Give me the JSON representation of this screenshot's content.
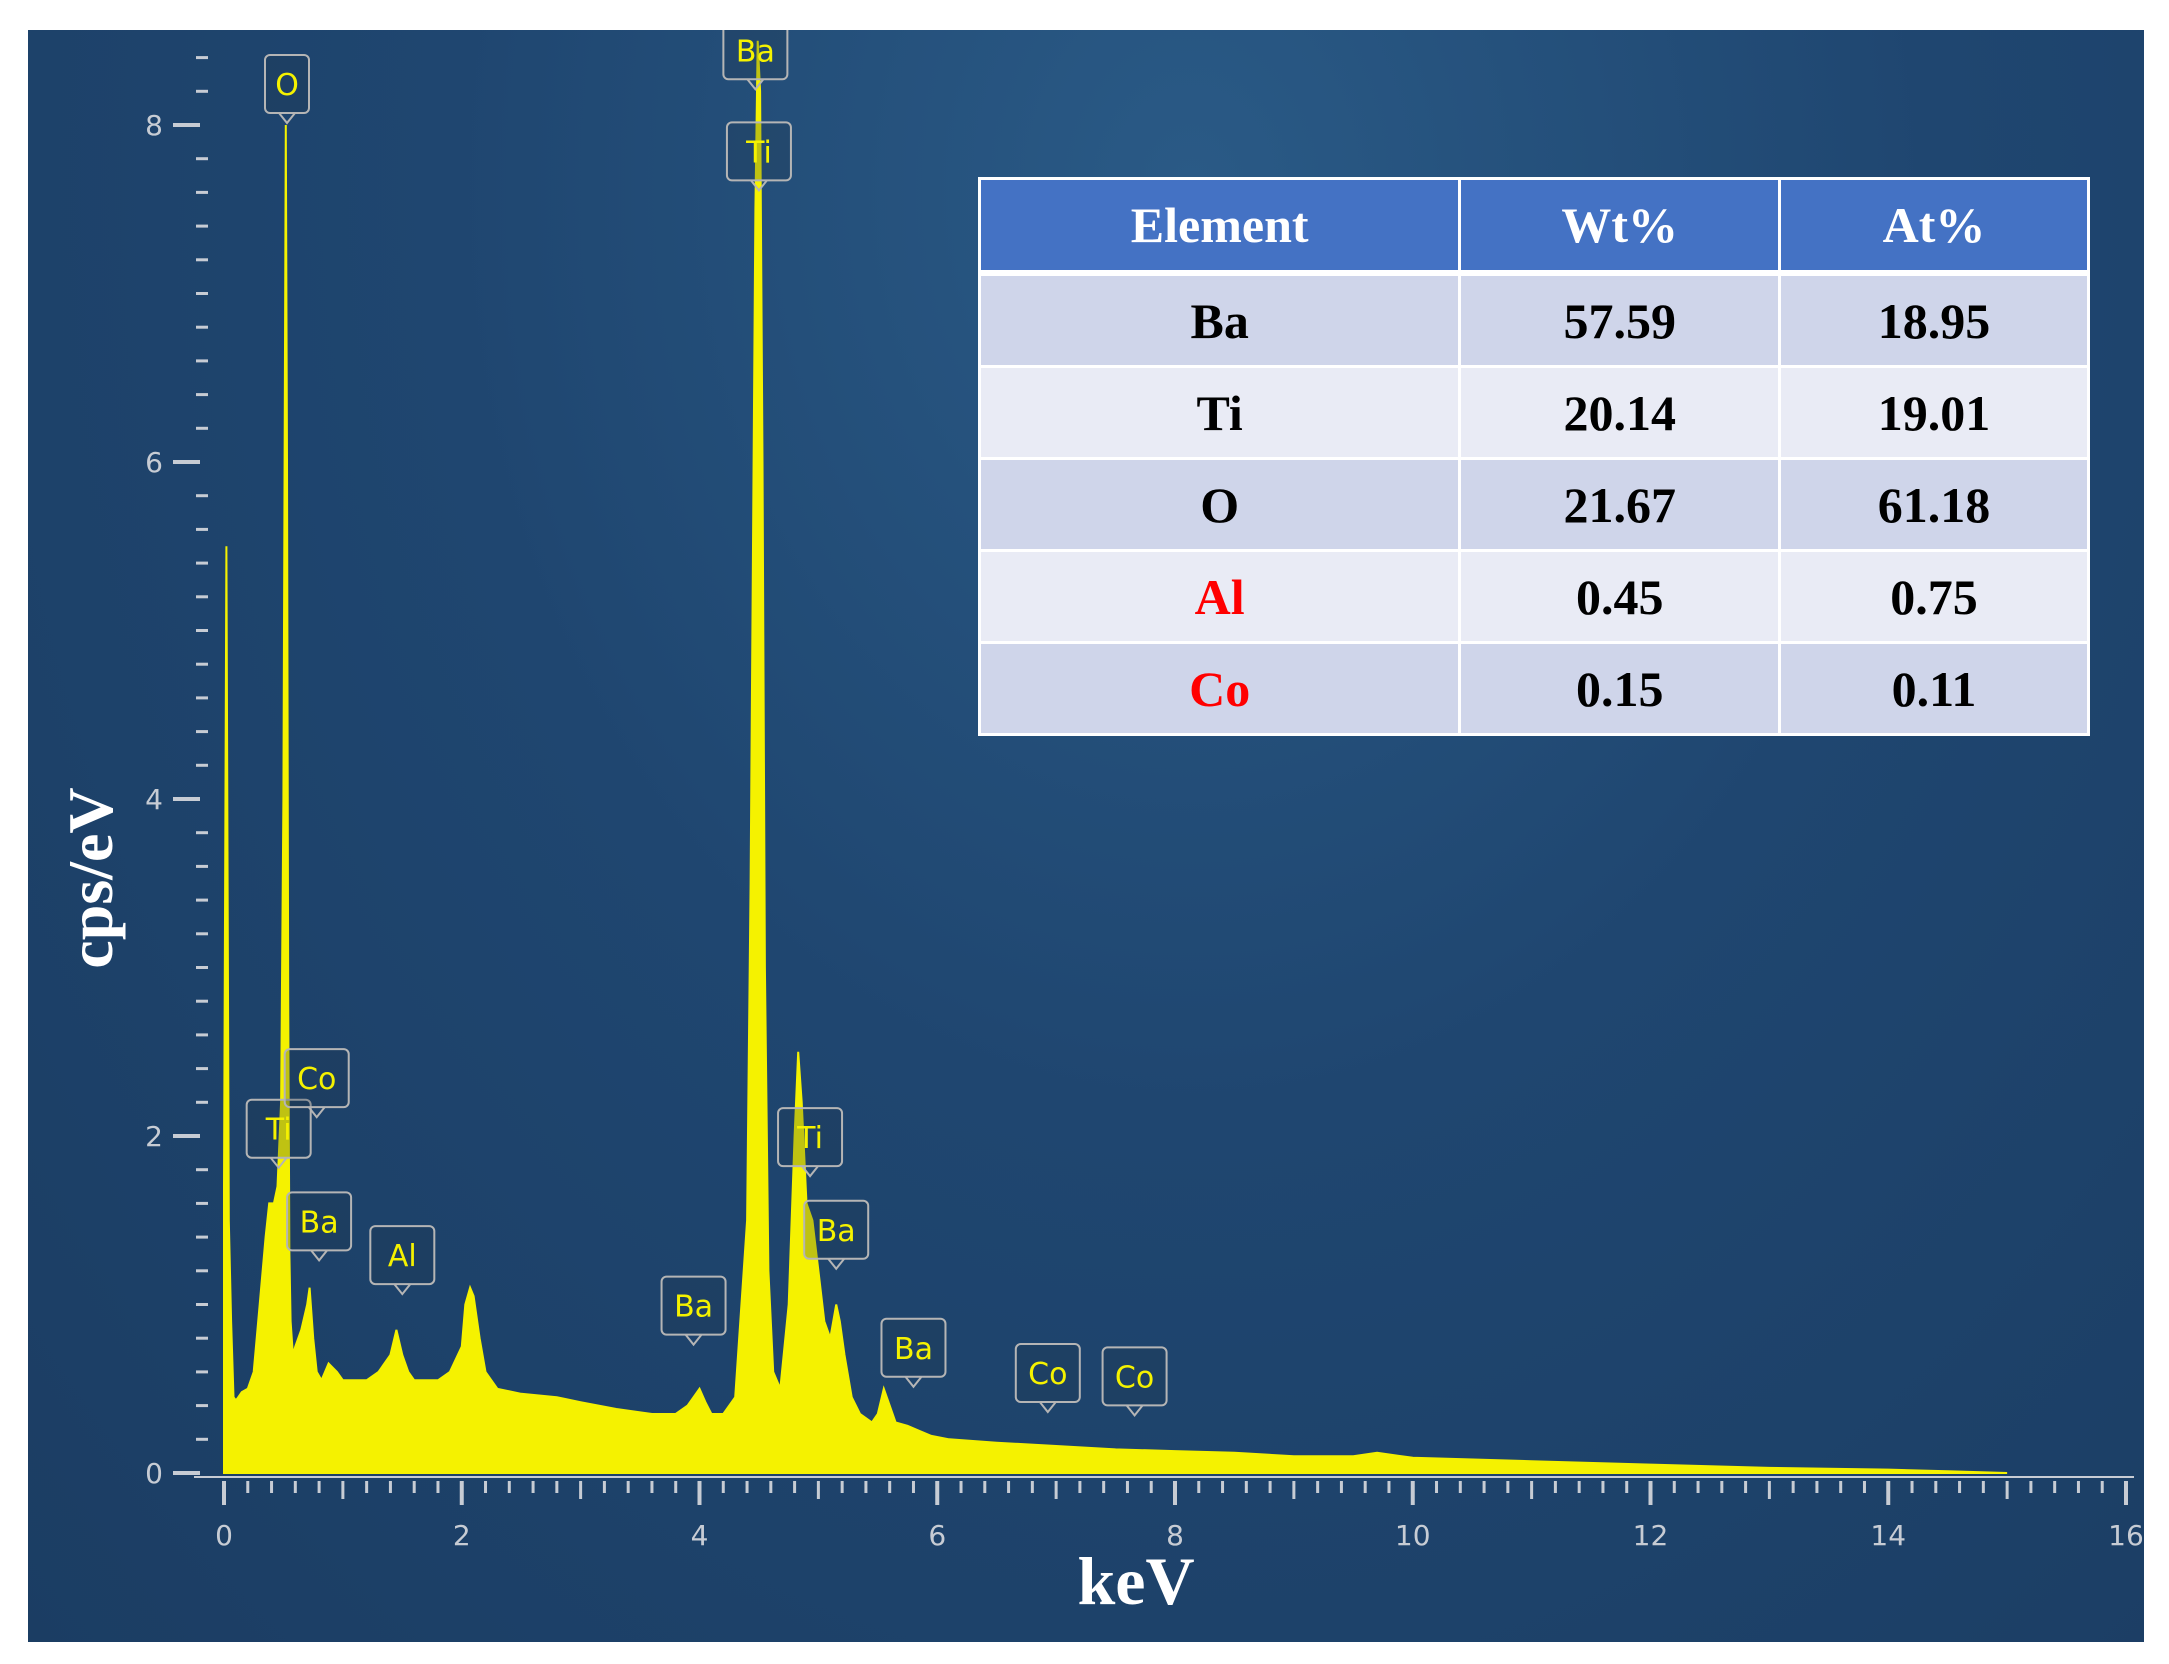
{
  "chart_data": {
    "type": "line",
    "xlabel": "keV",
    "ylabel": "cps/eV",
    "xlim": [
      0,
      16
    ],
    "ylim": [
      0,
      8.5
    ],
    "x_ticks": [
      "0",
      "2",
      "4",
      "6",
      "8",
      "10",
      "12",
      "14",
      "16"
    ],
    "y_ticks": [
      "0",
      "2",
      "4",
      "6",
      "8"
    ],
    "grid": false,
    "series": [
      {
        "x": [
          0.0,
          0.02,
          0.04,
          0.06,
          0.08,
          0.1,
          0.12,
          0.15,
          0.2,
          0.25,
          0.3,
          0.35,
          0.38,
          0.42,
          0.45,
          0.48,
          0.5,
          0.51,
          0.52,
          0.53,
          0.54,
          0.55,
          0.56,
          0.58,
          0.6,
          0.65,
          0.7,
          0.72,
          0.75,
          0.78,
          0.82,
          0.88,
          0.95,
          1.0,
          1.05,
          1.1,
          1.2,
          1.3,
          1.4,
          1.45,
          1.5,
          1.55,
          1.6,
          1.7,
          1.8,
          1.9,
          2.0,
          2.03,
          2.07,
          2.1,
          2.15,
          2.2,
          2.3,
          2.5,
          2.8,
          3.0,
          3.3,
          3.6,
          3.8,
          3.9,
          4.0,
          4.05,
          4.1,
          4.2,
          4.3,
          4.4,
          4.43,
          4.45,
          4.47,
          4.49,
          4.51,
          4.53,
          4.55,
          4.58,
          4.62,
          4.68,
          4.75,
          4.8,
          4.83,
          4.86,
          4.9,
          4.95,
          5.0,
          5.05,
          5.1,
          5.15,
          5.18,
          5.22,
          5.28,
          5.35,
          5.45,
          5.5,
          5.55,
          5.6,
          5.65,
          5.75,
          5.85,
          5.95,
          6.1,
          6.5,
          7.0,
          7.5,
          8.0,
          8.5,
          9.0,
          9.5,
          9.7,
          10.0,
          11.0,
          12.0,
          13.0,
          14.0,
          14.5,
          15.0
        ],
        "y": [
          1.7,
          5.5,
          1.5,
          0.9,
          0.45,
          0.43,
          0.45,
          0.48,
          0.5,
          0.6,
          1.0,
          1.4,
          1.6,
          1.6,
          1.7,
          2.2,
          4.0,
          6.0,
          8.0,
          6.0,
          2.8,
          1.3,
          0.9,
          0.7,
          0.75,
          0.85,
          1.0,
          1.1,
          0.8,
          0.6,
          0.55,
          0.65,
          0.6,
          0.55,
          0.55,
          0.55,
          0.55,
          0.6,
          0.7,
          0.85,
          0.7,
          0.6,
          0.55,
          0.55,
          0.55,
          0.6,
          0.75,
          1.0,
          1.1,
          1.05,
          0.8,
          0.6,
          0.5,
          0.47,
          0.45,
          0.42,
          0.38,
          0.35,
          0.35,
          0.4,
          0.5,
          0.42,
          0.35,
          0.35,
          0.45,
          1.5,
          3.5,
          5.5,
          7.5,
          8.5,
          8.2,
          6.0,
          3.0,
          1.2,
          0.6,
          0.5,
          1.0,
          2.0,
          2.5,
          2.2,
          1.6,
          1.5,
          1.2,
          0.9,
          0.8,
          1.0,
          0.9,
          0.7,
          0.45,
          0.35,
          0.3,
          0.35,
          0.5,
          0.4,
          0.3,
          0.28,
          0.25,
          0.22,
          0.2,
          0.18,
          0.16,
          0.14,
          0.13,
          0.12,
          0.1,
          0.1,
          0.12,
          0.09,
          0.07,
          0.05,
          0.03,
          0.02,
          0.01,
          0.0
        ]
      }
    ],
    "peak_labels": [
      {
        "label": "O",
        "x": 0.53,
        "y": 8.0
      },
      {
        "label": "Ti",
        "x": 0.46,
        "y": 1.8
      },
      {
        "label": "Co",
        "x": 0.78,
        "y": 2.1
      },
      {
        "label": "Ba",
        "x": 0.8,
        "y": 1.25
      },
      {
        "label": "Al",
        "x": 1.5,
        "y": 1.05
      },
      {
        "label": "Ba",
        "x": 3.95,
        "y": 0.75
      },
      {
        "label": "Ba",
        "x": 4.47,
        "y": 8.2
      },
      {
        "label": "Ti",
        "x": 4.5,
        "y": 7.6
      },
      {
        "label": "Ti",
        "x": 4.93,
        "y": 1.75
      },
      {
        "label": "Ba",
        "x": 5.15,
        "y": 1.2
      },
      {
        "label": "Ba",
        "x": 5.8,
        "y": 0.5
      },
      {
        "label": "Co",
        "x": 6.93,
        "y": 0.35
      },
      {
        "label": "Co",
        "x": 7.66,
        "y": 0.33
      }
    ],
    "table": {
      "headers": [
        "Element",
        "Wt%",
        "At%"
      ],
      "rows": [
        {
          "element": "Ba",
          "wt": "57.59",
          "at": "18.95",
          "highlight": false
        },
        {
          "element": "Ti",
          "wt": "20.14",
          "at": "19.01",
          "highlight": false
        },
        {
          "element": "O",
          "wt": "21.67",
          "at": "61.18",
          "highlight": false
        },
        {
          "element": "Al",
          "wt": "0.45",
          "at": "0.75",
          "highlight": true
        },
        {
          "element": "Co",
          "wt": "0.15",
          "at": "0.11",
          "highlight": true
        }
      ]
    }
  },
  "colors": {
    "spectrum": "#f5f200",
    "highlight_text": "#ff0000",
    "table_header": "#4472c4"
  }
}
